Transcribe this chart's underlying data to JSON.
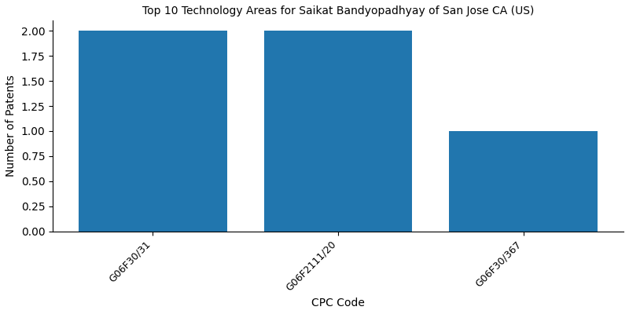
{
  "title": "Top 10 Technology Areas for Saikat Bandyopadhyay of San Jose CA (US)",
  "categories": [
    "G06F30/31",
    "G06F2111/20",
    "G06F30/367"
  ],
  "values": [
    2,
    2,
    1
  ],
  "bar_color": "#2176AE",
  "xlabel": "CPC Code",
  "ylabel": "Number of Patents",
  "ylim": [
    0,
    2.1
  ],
  "yticks": [
    0.0,
    0.25,
    0.5,
    0.75,
    1.0,
    1.25,
    1.5,
    1.75,
    2.0
  ],
  "figsize": [
    8.0,
    4.0
  ],
  "dpi": 100,
  "bar_width": 0.8
}
